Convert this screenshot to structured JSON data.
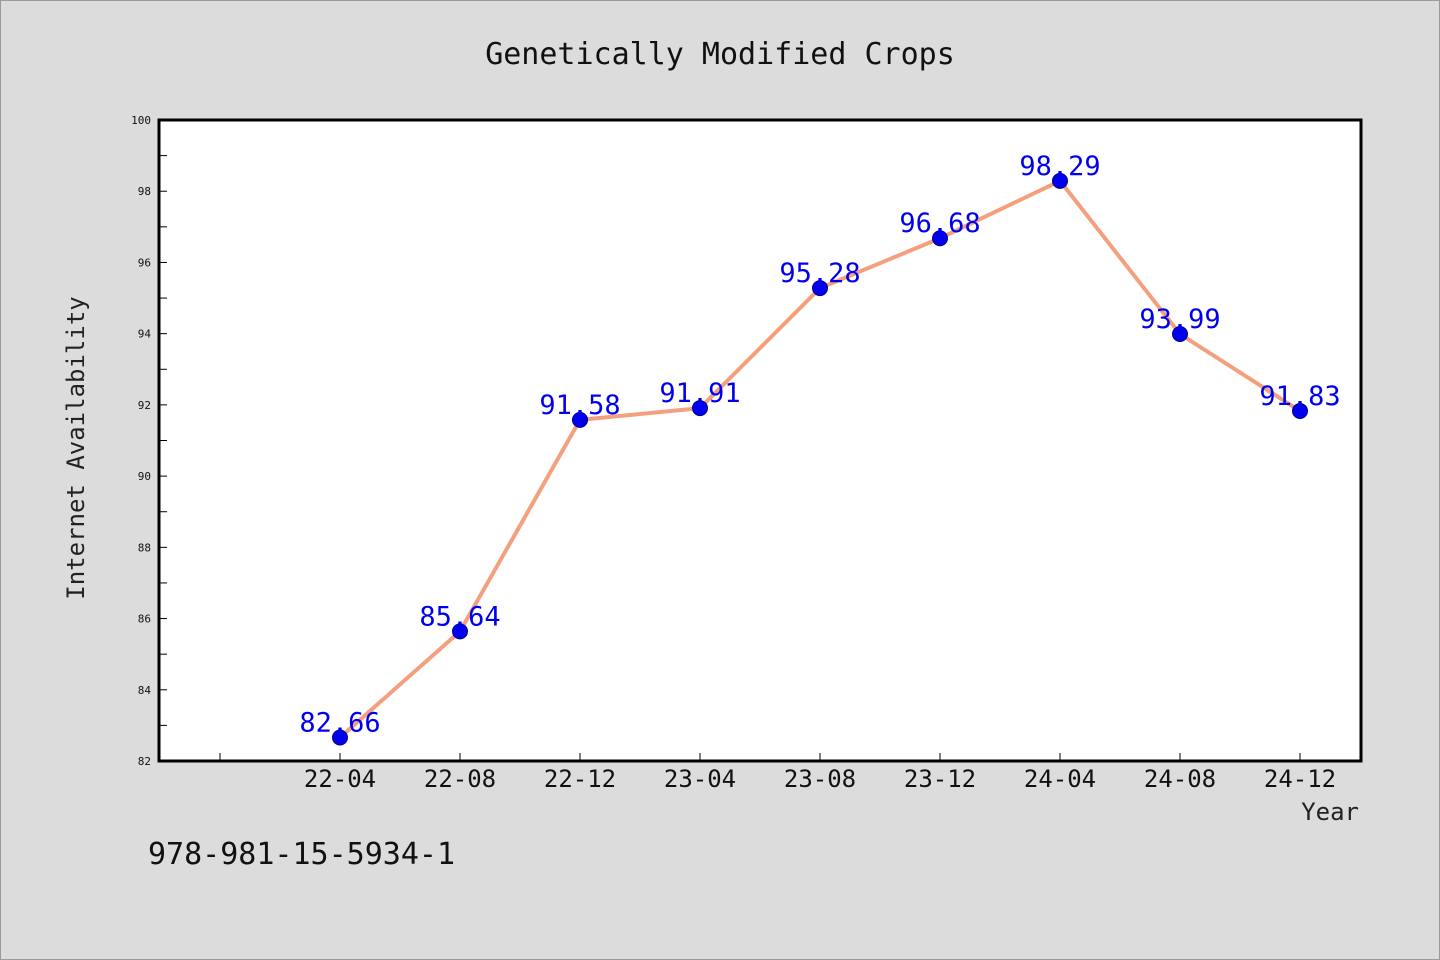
{
  "chart_data": {
    "type": "line",
    "title": "Genetically Modified Crops",
    "xlabel": "Year",
    "ylabel": "Internet Availability",
    "categories": [
      "22-04",
      "22-08",
      "22-12",
      "23-04",
      "23-08",
      "23-12",
      "24-04",
      "24-08",
      "24-12"
    ],
    "values": [
      82.66,
      85.64,
      91.58,
      91.91,
      95.28,
      96.68,
      98.29,
      93.99,
      91.83
    ],
    "data_labels": [
      "82.66",
      "85.64",
      "91.58",
      "91.91",
      "95.28",
      "96.68",
      "98.29",
      "93.99",
      "91.83"
    ],
    "ylim": [
      82,
      100
    ],
    "yticks": [
      82,
      84,
      86,
      88,
      90,
      92,
      94,
      96,
      98,
      100
    ],
    "grid": false,
    "legend": "none",
    "line_color": "#f4a07e",
    "marker_color": "#0000ee"
  },
  "footer": {
    "isbn": "978-981-15-5934-1"
  }
}
